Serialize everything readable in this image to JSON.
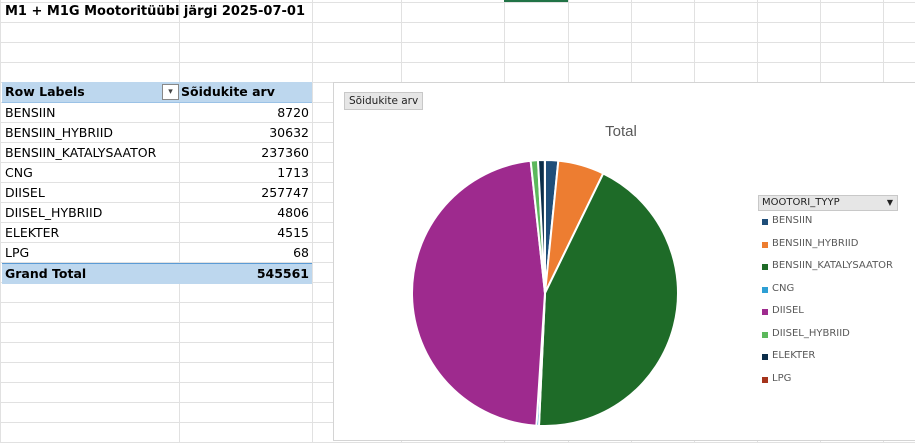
{
  "sheet": {
    "title": "M1 + M1G Mootoritüübi järgi 2025-07-01"
  },
  "pivot": {
    "header": {
      "row_labels": "Row Labels",
      "value_col": "Sõidukite arv"
    },
    "rows": [
      {
        "label": "BENSIIN",
        "value": "8720"
      },
      {
        "label": "BENSIIN_HYBRIID",
        "value": "30632"
      },
      {
        "label": "BENSIIN_KATALYSAATOR",
        "value": "237360"
      },
      {
        "label": "CNG",
        "value": "1713"
      },
      {
        "label": "DIISEL",
        "value": "257747"
      },
      {
        "label": "DIISEL_HYBRIID",
        "value": "4806"
      },
      {
        "label": "ELEKTER",
        "value": "4515"
      },
      {
        "label": "LPG",
        "value": "68"
      }
    ],
    "total": {
      "label": "Grand Total",
      "value": "545561"
    }
  },
  "chart": {
    "field_button": "Sõidukite arv",
    "legend_field": "MOOTORI_TYYP"
  },
  "chart_data": {
    "type": "pie",
    "title": "Total",
    "categories": [
      "BENSIIN",
      "BENSIIN_HYBRIID",
      "BENSIIN_KATALYSAATOR",
      "CNG",
      "DIISEL",
      "DIISEL_HYBRIID",
      "ELEKTER",
      "LPG"
    ],
    "values": [
      8720,
      30632,
      237360,
      1713,
      257747,
      4806,
      4515,
      68
    ],
    "colors": [
      "#1f4e79",
      "#ed7d31",
      "#1e6b28",
      "#2e9fd4",
      "#9e2a8e",
      "#5cb85c",
      "#0b2e4a",
      "#a5341c"
    ],
    "legend_position": "right"
  }
}
